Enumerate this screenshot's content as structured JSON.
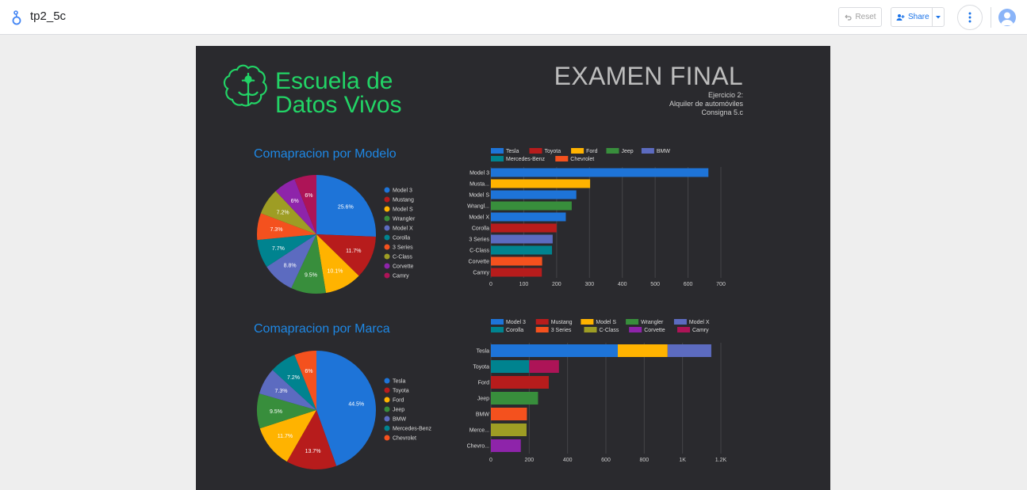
{
  "header": {
    "doc_title": "tp2_5c",
    "reset_label": "Reset",
    "share_label": "Share"
  },
  "report": {
    "logo_line1": "Escuela de",
    "logo_line2": "Datos Vivos",
    "title": "EXAMEN FINAL",
    "subtitle_lines": [
      "Ejercicio 2:",
      "Alquiler de automóviles",
      "Consigna 5.c"
    ],
    "section_model_title": "Comapracion por Modelo",
    "section_brand_title": "Comapracion por Marca"
  },
  "colors": {
    "blue": "#1e74d8",
    "red": "#b71c1c",
    "yellow": "#ffb300",
    "green": "#388e3c",
    "indigo": "#5c6bc0",
    "teal": "#00838f",
    "orange": "#f4511e",
    "olive": "#9e9d24",
    "purple": "#8e24aa",
    "crimson": "#ad1457",
    "accent": "#1a73e8",
    "logo_green": "#22d466"
  },
  "chart_data": [
    {
      "type": "pie",
      "title": "Comapracion por Modelo",
      "labels": [
        "Model 3",
        "Mustang",
        "Model S",
        "Wrangler",
        "Model X",
        "Corolla",
        "3 Series",
        "C-Class",
        "Corvette",
        "Camry"
      ],
      "values": [
        25.6,
        11.7,
        10.1,
        9.5,
        8.8,
        7.7,
        7.3,
        7.2,
        6,
        6
      ],
      "value_labels": [
        "25.6%",
        "11.7%",
        "10.1%",
        "9.5%",
        "8.8%",
        "7.7%",
        "7.3%",
        "7.2%",
        "6%",
        "6%"
      ],
      "colors": [
        "#1e74d8",
        "#b71c1c",
        "#ffb300",
        "#388e3c",
        "#5c6bc0",
        "#00838f",
        "#f4511e",
        "#9e9d24",
        "#8e24aa",
        "#ad1457"
      ],
      "legend": "right"
    },
    {
      "type": "bar",
      "orientation": "horizontal",
      "stacked": true,
      "categories": [
        "Model 3",
        "Musta...",
        "Model S",
        "Wrangl...",
        "Model X",
        "Corolla",
        "3 Series",
        "C-Class",
        "Corvette",
        "Camry"
      ],
      "series": [
        {
          "name": "Tesla",
          "color": "#1e74d8",
          "values": [
            662,
            0,
            260,
            0,
            228,
            0,
            0,
            0,
            0,
            0
          ]
        },
        {
          "name": "Toyota",
          "color": "#b71c1c",
          "values": [
            0,
            0,
            0,
            0,
            0,
            200,
            0,
            0,
            0,
            155
          ]
        },
        {
          "name": "Ford",
          "color": "#ffb300",
          "values": [
            0,
            302,
            0,
            0,
            0,
            0,
            0,
            0,
            0,
            0
          ]
        },
        {
          "name": "Jeep",
          "color": "#388e3c",
          "values": [
            0,
            0,
            0,
            246,
            0,
            0,
            0,
            0,
            0,
            0
          ]
        },
        {
          "name": "BMW",
          "color": "#5c6bc0",
          "values": [
            0,
            0,
            0,
            0,
            0,
            0,
            188,
            0,
            0,
            0
          ]
        },
        {
          "name": "Mercedes-Benz",
          "color": "#00838f",
          "values": [
            0,
            0,
            0,
            0,
            0,
            0,
            0,
            186,
            0,
            0
          ]
        },
        {
          "name": "Chevrolet",
          "color": "#f4511e",
          "values": [
            0,
            0,
            0,
            0,
            0,
            0,
            0,
            0,
            156,
            0
          ]
        }
      ],
      "xticks": [
        "0",
        "100",
        "200",
        "300",
        "400",
        "500",
        "600",
        "700"
      ],
      "xlim": [
        0,
        700
      ],
      "grid": true,
      "legend": "top"
    },
    {
      "type": "pie",
      "title": "Comapracion por Marca",
      "labels": [
        "Tesla",
        "Toyota",
        "Ford",
        "Jeep",
        "BMW",
        "Mercedes-Benz",
        "Chevrolet"
      ],
      "values": [
        44.5,
        13.7,
        11.7,
        9.5,
        7.3,
        7.2,
        6
      ],
      "value_labels": [
        "44.5%",
        "13.7%",
        "11.7%",
        "9.5%",
        "7.3%",
        "7.2%",
        "6%"
      ],
      "colors": [
        "#1e74d8",
        "#b71c1c",
        "#ffb300",
        "#388e3c",
        "#5c6bc0",
        "#00838f",
        "#f4511e"
      ],
      "legend": "right"
    },
    {
      "type": "bar",
      "orientation": "horizontal",
      "stacked": true,
      "categories": [
        "Tesla",
        "Toyota",
        "Ford",
        "Jeep",
        "BMW",
        "Merce...",
        "Chevro..."
      ],
      "series": [
        {
          "name": "Model 3",
          "color": "#1e74d8",
          "values": [
            662,
            0,
            0,
            0,
            0,
            0,
            0
          ]
        },
        {
          "name": "Mustang",
          "color": "#b71c1c",
          "values": [
            0,
            0,
            302,
            0,
            0,
            0,
            0
          ]
        },
        {
          "name": "Model S",
          "color": "#ffb300",
          "values": [
            260,
            0,
            0,
            0,
            0,
            0,
            0
          ]
        },
        {
          "name": "Wrangler",
          "color": "#388e3c",
          "values": [
            0,
            0,
            0,
            246,
            0,
            0,
            0
          ]
        },
        {
          "name": "Model X",
          "color": "#5c6bc0",
          "values": [
            228,
            0,
            0,
            0,
            0,
            0,
            0
          ]
        },
        {
          "name": "Corolla",
          "color": "#00838f",
          "values": [
            0,
            200,
            0,
            0,
            0,
            0,
            0
          ]
        },
        {
          "name": "3 Series",
          "color": "#f4511e",
          "values": [
            0,
            0,
            0,
            0,
            188,
            0,
            0
          ]
        },
        {
          "name": "C-Class",
          "color": "#9e9d24",
          "values": [
            0,
            0,
            0,
            0,
            0,
            186,
            0
          ]
        },
        {
          "name": "Corvette",
          "color": "#8e24aa",
          "values": [
            0,
            0,
            0,
            0,
            0,
            0,
            156
          ]
        },
        {
          "name": "Camry",
          "color": "#ad1457",
          "values": [
            0,
            155,
            0,
            0,
            0,
            0,
            0
          ]
        }
      ],
      "xticks": [
        "0",
        "200",
        "400",
        "600",
        "800",
        "1K",
        "1.2K"
      ],
      "xlim": [
        0,
        1200
      ],
      "grid": true,
      "legend": "top"
    }
  ]
}
